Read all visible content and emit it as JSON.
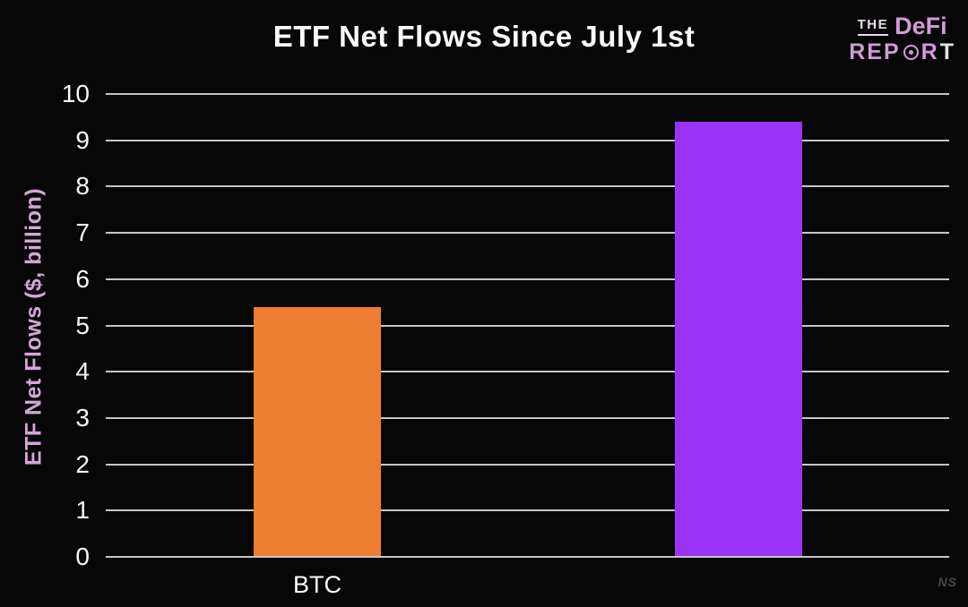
{
  "page": {
    "title": "ETF Net Flows Since July 1st",
    "watermark": "NS",
    "background_color": "#070707"
  },
  "logo": {
    "line1_the": "THE",
    "line1_defi": "DeFi",
    "line2_rep": "REP",
    "line2_r": "R",
    "line2_t": "T",
    "pink_color": "#d29ad8",
    "light_color": "#eadcea"
  },
  "chart_data": {
    "type": "bar",
    "title": "ETF Net Flows Since July 1st",
    "ylabel": "ETF Net Flows ($, billion)",
    "xlabel": "",
    "categories": [
      "BTC",
      ""
    ],
    "values": [
      5.4,
      9.4
    ],
    "bar_colors": [
      "#ED7D31",
      "#9A33F7"
    ],
    "ylim": [
      0,
      10
    ],
    "ytick_step": 1,
    "grid": true,
    "legend": "none",
    "gridline_color": "#c6c6c6",
    "tick_label_color": "#f5f5f5",
    "ylabel_color": "#d4a7d4",
    "background_color": "#070707"
  }
}
